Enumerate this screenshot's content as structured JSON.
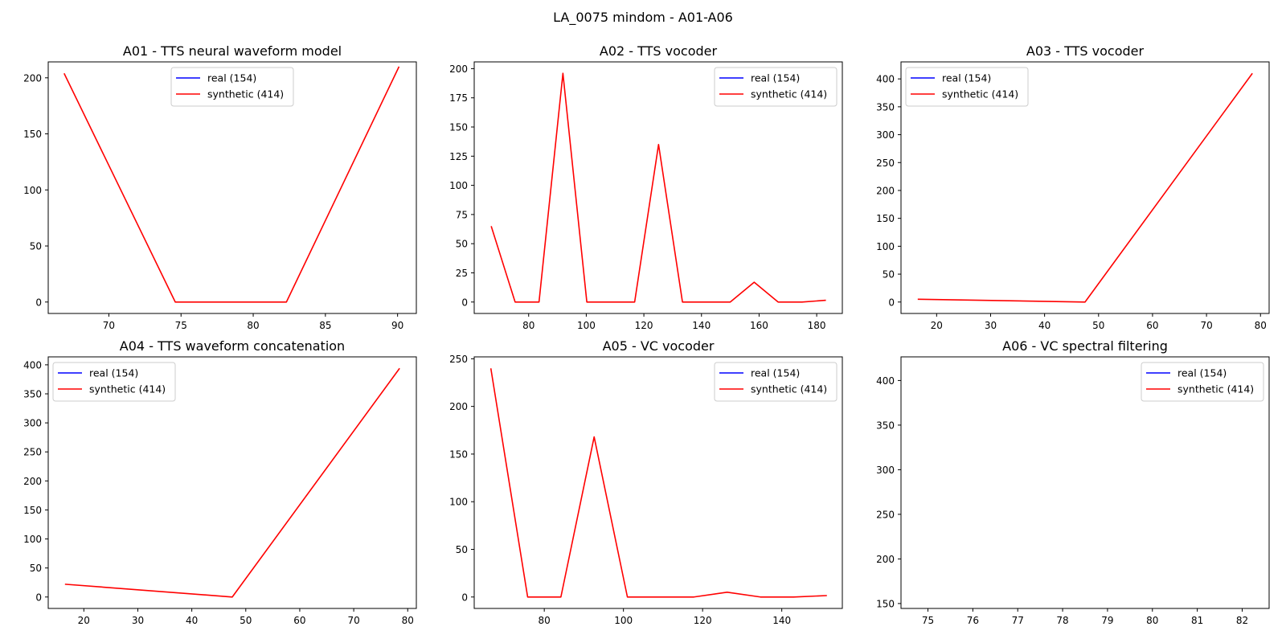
{
  "figure": {
    "title": "LA_0075 mindom - A01-A06"
  },
  "legend": {
    "real_label": "real (154)",
    "synthetic_label": "synthetic (414)"
  },
  "colors": {
    "real": "#0000ff",
    "synthetic": "#ff0000",
    "axes": "#000000"
  },
  "chart_data": [
    {
      "type": "line",
      "title": "A01 - TTS neural waveform model",
      "xlim": [
        65.8,
        91.3
      ],
      "ylim": [
        -10.2,
        214.2
      ],
      "xticks": [
        70,
        75,
        80,
        85,
        90
      ],
      "yticks": [
        0,
        50,
        100,
        150,
        200
      ],
      "grid": false,
      "legend_position": "upper center",
      "series": [
        {
          "name": "real (154)",
          "x": [],
          "y": []
        },
        {
          "name": "synthetic (414)",
          "x": [
            66.9,
            74.6,
            82.3,
            90.1
          ],
          "y": [
            204,
            0,
            0,
            210
          ]
        }
      ]
    },
    {
      "type": "line",
      "title": "A02 - TTS vocoder",
      "xlim": [
        61.1,
        188.9
      ],
      "ylim": [
        -9.8,
        205.8
      ],
      "xticks": [
        80,
        100,
        120,
        140,
        160,
        180
      ],
      "yticks": [
        0,
        25,
        50,
        75,
        100,
        125,
        150,
        175,
        200
      ],
      "grid": false,
      "legend_position": "upper right",
      "series": [
        {
          "name": "real (154)",
          "x": [],
          "y": []
        },
        {
          "name": "synthetic (414)",
          "x": [
            67,
            75.3,
            83.6,
            91.9,
            100.2,
            108.5,
            116.8,
            125.1,
            133.4,
            141.7,
            150,
            158.3,
            166.6,
            174.9,
            183.2
          ],
          "y": [
            65,
            0,
            0,
            196,
            0,
            0,
            0,
            135,
            0,
            0,
            0,
            17,
            0,
            0,
            1.5
          ]
        }
      ]
    },
    {
      "type": "line",
      "title": "A03 - TTS vocoder",
      "xlim": [
        13.4,
        81.6
      ],
      "ylim": [
        -20.5,
        430.5
      ],
      "xticks": [
        20,
        30,
        40,
        50,
        60,
        70,
        80
      ],
      "yticks": [
        0,
        50,
        100,
        150,
        200,
        250,
        300,
        350,
        400
      ],
      "grid": false,
      "legend_position": "upper left",
      "series": [
        {
          "name": "real (154)",
          "x": [],
          "y": []
        },
        {
          "name": "synthetic (414)",
          "x": [
            16.5,
            47.5,
            78.5
          ],
          "y": [
            5,
            0,
            410
          ]
        }
      ]
    },
    {
      "type": "line",
      "title": "A04 - TTS waveform concatenation",
      "xlim": [
        13.4,
        81.6
      ],
      "ylim": [
        -19.7,
        413.7
      ],
      "xticks": [
        20,
        30,
        40,
        50,
        60,
        70,
        80
      ],
      "yticks": [
        0,
        50,
        100,
        150,
        200,
        250,
        300,
        350,
        400
      ],
      "grid": false,
      "legend_position": "upper left",
      "series": [
        {
          "name": "real (154)",
          "x": [],
          "y": []
        },
        {
          "name": "synthetic (414)",
          "x": [
            16.5,
            47.5,
            78.5
          ],
          "y": [
            22,
            0,
            394
          ]
        }
      ]
    },
    {
      "type": "line",
      "title": "A05 - VC vocoder",
      "xlim": [
        62.3,
        155.3
      ],
      "ylim": [
        -12,
        252
      ],
      "xticks": [
        80,
        100,
        120,
        140
      ],
      "yticks": [
        0,
        50,
        100,
        150,
        200,
        250
      ],
      "grid": false,
      "legend_position": "upper right",
      "series": [
        {
          "name": "real (154)",
          "x": [],
          "y": []
        },
        {
          "name": "synthetic (414)",
          "x": [
            66.5,
            75.8,
            84.2,
            92.6,
            101,
            109.4,
            117.8,
            126.2,
            134.6,
            143,
            151.4
          ],
          "y": [
            240,
            0,
            0,
            168,
            0,
            0,
            0,
            5,
            0,
            0,
            1.5
          ]
        }
      ]
    },
    {
      "type": "line",
      "title": "A06 - VC spectral filtering",
      "xlim": [
        74.4,
        82.6
      ],
      "ylim": [
        144.5,
        426.5
      ],
      "xticks": [
        75,
        76,
        77,
        78,
        79,
        80,
        81,
        82
      ],
      "yticks": [
        150,
        200,
        250,
        300,
        350,
        400
      ],
      "grid": false,
      "legend_position": "upper right",
      "series": [
        {
          "name": "real (154)",
          "x": [],
          "y": []
        },
        {
          "name": "synthetic (414)",
          "x": [],
          "y": []
        }
      ]
    }
  ]
}
